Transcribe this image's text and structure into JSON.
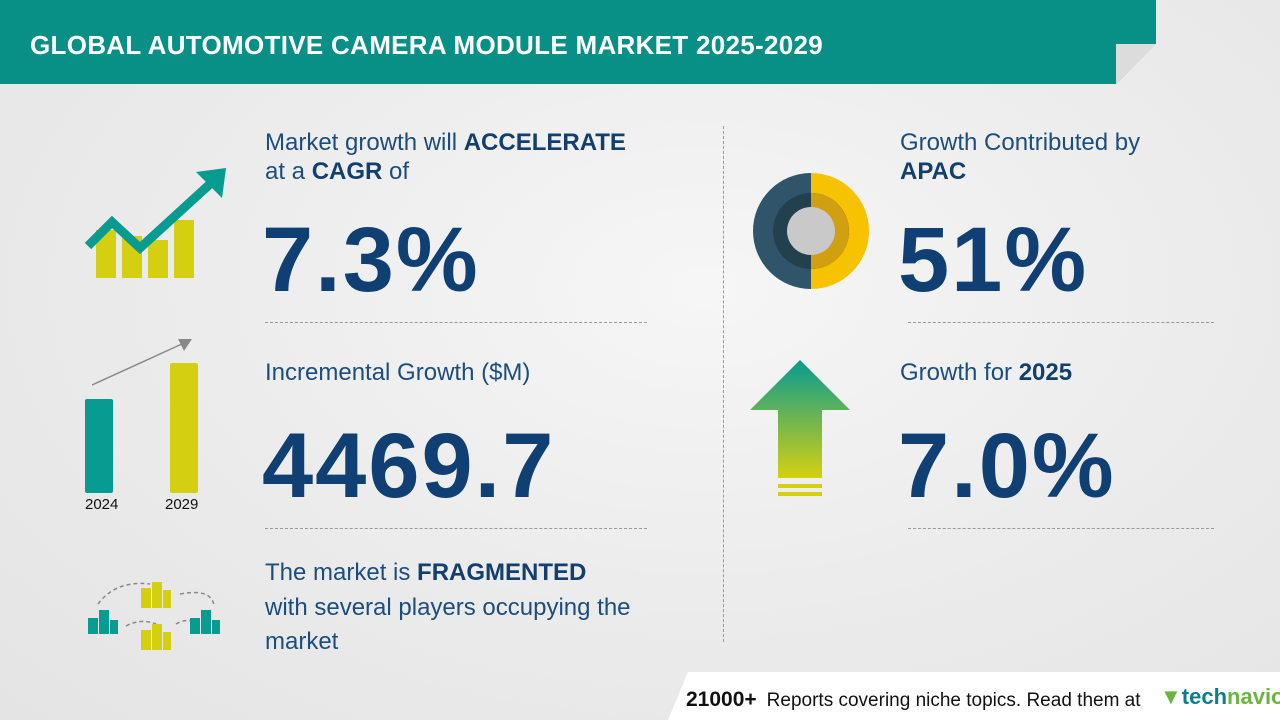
{
  "header": {
    "title": "GLOBAL AUTOMOTIVE CAMERA MODULE MARKET 2025-2029"
  },
  "cagr": {
    "line1_pre": "Market growth will ",
    "line1_bold": "ACCELERATE",
    "line2_pre": "at a ",
    "line2_bold": "CAGR",
    "line2_post": "  of",
    "value": "7.3%",
    "icon": "growth-chart-icon"
  },
  "incremental": {
    "label": "Incremental Growth ($M)",
    "value": "4469.7",
    "years": [
      "2024",
      "2029"
    ],
    "colors": {
      "2024": "#079b91",
      "2029": "#d4d011"
    }
  },
  "fragmented": {
    "line1_pre": "The market is  ",
    "line1_bold": "FRAGMENTED",
    "line2": "with several players occupying the",
    "line3": "market",
    "icon": "buildings-network-icon"
  },
  "region": {
    "label": "Growth Contributed by",
    "region": "APAC",
    "value": "51%",
    "share": 51,
    "icon": "donut-chart-icon"
  },
  "growth_year": {
    "label": "Growth for ",
    "year": "2025",
    "value": "7.0%",
    "icon": "up-arrow-icon"
  },
  "footer": {
    "count": "21000+",
    "text": "Reports covering niche topics. Read them at",
    "logo": "technavio",
    "logo_a": "tech",
    "logo_b": "navio"
  },
  "colors": {
    "teal": "#088f86",
    "yellow": "#d4d011",
    "navy": "#0f3f73"
  }
}
